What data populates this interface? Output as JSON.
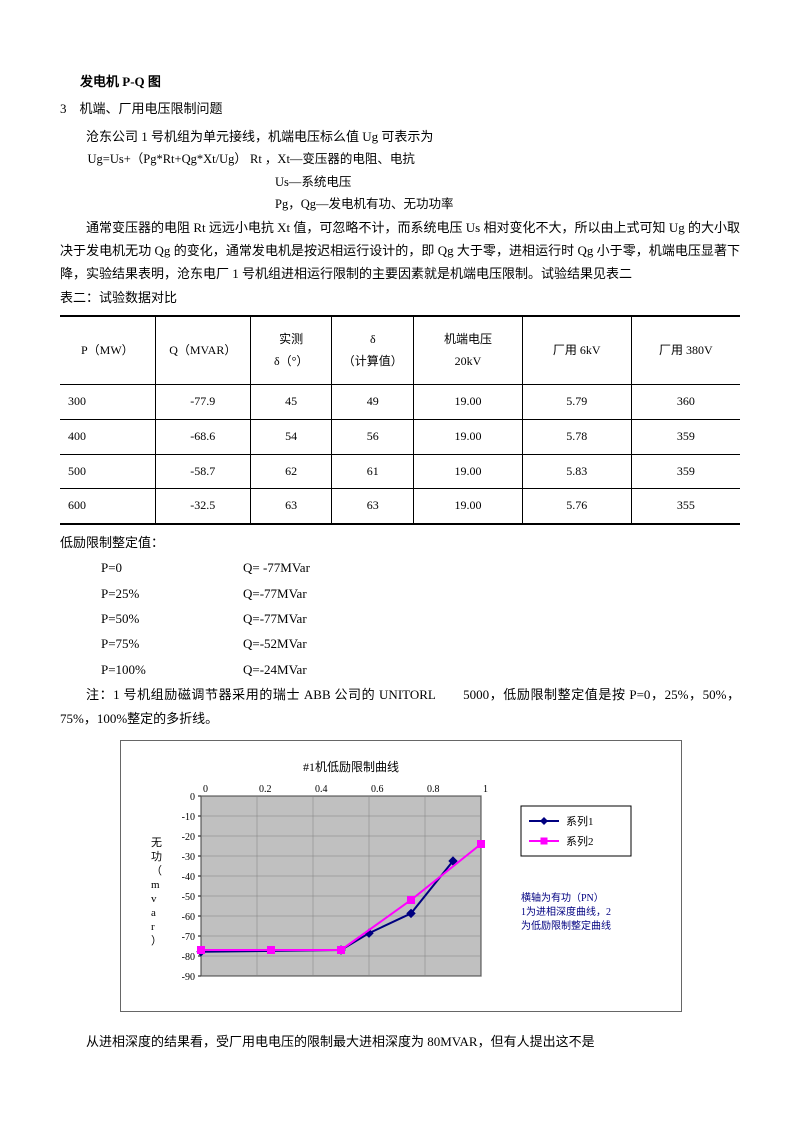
{
  "title_top": "发电机 P-Q 图",
  "section_num": "3",
  "section_title": "机端、厂用电压限制问题",
  "p1": "沧东公司 1 号机组为单元接线，机端电压标么值 Ug 可表示为",
  "formula1": "Ug=Us+（Pg*Rt+Qg*Xt/Ug）   Rt ，Xt—变压器的电阻、电抗",
  "formula2": "Us—系统电压",
  "formula3": "Pg，Qg—发电机有功、无功功率",
  "p2": "通常变压器的电阻 Rt 远远小电抗 Xt 值，可忽略不计，而系统电压 Us 相对变化不大，所以由上式可知 Ug 的大小取决于发电机无功 Qg 的变化，通常发电机是按迟相运行设计的，即 Qg 大于零，进相运行时 Qg 小于零，机端电压显著下降，实验结果表明，沧东电厂 1 号机组进相运行限制的主要因素就是机端电压限制。试验结果见表二",
  "table2_caption": "表二：试验数据对比",
  "table2": {
    "columns": [
      "P（MW）",
      "Q（MVAR）",
      "实测\nδ（°）",
      "δ\n（计算值）",
      "机端电压\n20kV",
      "厂用 6kV",
      "厂用 380V"
    ],
    "rows": [
      [
        "300",
        "-77.9",
        "45",
        "49",
        "19.00",
        "5.79",
        "360"
      ],
      [
        "400",
        "-68.6",
        "54",
        "56",
        "19.00",
        "5.78",
        "359"
      ],
      [
        "500",
        "-58.7",
        "62",
        "61",
        "19.00",
        "5.83",
        "359"
      ],
      [
        "600",
        "-32.5",
        "63",
        "63",
        "19.00",
        "5.76",
        "355"
      ]
    ],
    "col_widths": [
      "14%",
      "14%",
      "12%",
      "12%",
      "16%",
      "16%",
      "16%"
    ]
  },
  "limits_caption": "低励限制整定值：",
  "limits": [
    {
      "p": "P=0",
      "q": "Q= -77MVar"
    },
    {
      "p": "P=25%",
      "q": "Q=-77MVar"
    },
    {
      "p": "P=50%",
      "q": "Q=-77MVar"
    },
    {
      "p": "P=75%",
      "q": "Q=-52MVar"
    },
    {
      "p": "P=100%",
      "q": "Q=-24MVar"
    }
  ],
  "note": "注：1 号机组励磁调节器采用的瑞士 ABB 公司的 UNITORL　　5000，低励限制整定值是按 P=0，25%，50%，75%，100%整定的多折线。",
  "chart": {
    "title": "#1机低励限制曲线",
    "ylabel": "无功（mvar）",
    "ylim": [
      -90,
      0
    ],
    "ytick_step": 10,
    "xlim": [
      0,
      1
    ],
    "xtick_step": 0.2,
    "x_ticks_labels": [
      "0",
      "0.2",
      "0.4",
      "0.6",
      "0.8",
      "1"
    ],
    "grid_color": "#808080",
    "background_color": "#c0c0c0",
    "axis_color": "#000000",
    "series": [
      {
        "name": "系列1",
        "color": "#000080",
        "marker": "diamond",
        "marker_fill": "#000080",
        "points": [
          [
            0.0,
            -77.9
          ],
          [
            0.5,
            -77
          ],
          [
            0.6,
            -68.6
          ],
          [
            0.75,
            -58.7
          ],
          [
            0.9,
            -32.5
          ]
        ]
      },
      {
        "name": "系列2",
        "color": "#ff00ff",
        "marker": "square",
        "marker_fill": "#ff00ff",
        "points": [
          [
            0.0,
            -77
          ],
          [
            0.25,
            -77
          ],
          [
            0.5,
            -77
          ],
          [
            0.75,
            -52
          ],
          [
            1.0,
            -24
          ]
        ]
      }
    ],
    "legend_items": [
      "系列1",
      "系列2"
    ],
    "legend_note": "横轴为有功（PN）\n1为进相深度曲线，2\n为低励限制整定曲线"
  },
  "p_end": "从进相深度的结果看，受厂用电电压的限制最大进相深度为 80MVAR，但有人提出这不是"
}
